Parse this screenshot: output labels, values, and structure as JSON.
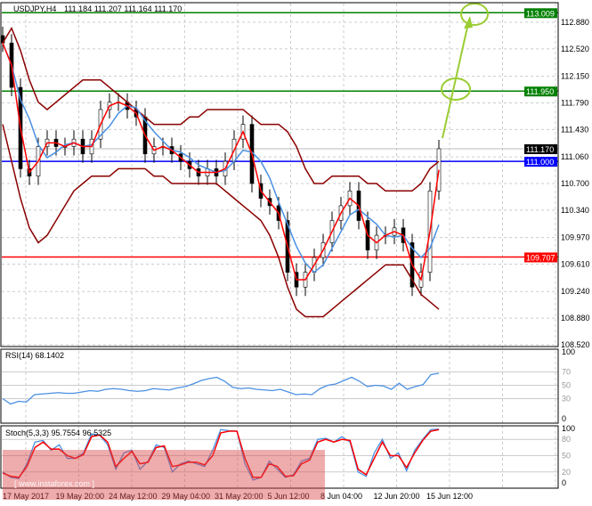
{
  "chart_data": [
    {
      "type": "candlestick",
      "title": "USDJPY,H4",
      "ohlc_header": "111.184 111.207 111.164 111.170",
      "ylim": [
        108.52,
        113.1
      ],
      "y_ticks": [
        "112.880",
        "112.520",
        "112.150",
        "111.790",
        "111.430",
        "111.060",
        "110.700",
        "110.340",
        "109.970",
        "109.610",
        "109.240",
        "108.880",
        "108.520"
      ],
      "x_ticks": [
        "17 May 2017",
        "19 May 20:00",
        "24 May 12:00",
        "29 May 04:00",
        "31 May 20:00",
        "5 Jun 12:00",
        "8 Jun 04:00",
        "12 Jun 20:00",
        "15 Jun 12:00"
      ],
      "closes": [
        112.6,
        112.0,
        110.9,
        110.8,
        111.2,
        111.3,
        111.2,
        111.2,
        111.3,
        111.1,
        111.3,
        111.7,
        111.8,
        111.8,
        111.7,
        111.6,
        111.1,
        111.2,
        111.2,
        111.1,
        111.0,
        110.9,
        110.8,
        110.9,
        110.8,
        111.0,
        111.3,
        111.5,
        110.7,
        110.5,
        110.4,
        110.2,
        109.5,
        109.3,
        109.5,
        109.7,
        109.9,
        110.2,
        110.4,
        110.6,
        110.2,
        109.8,
        110.0,
        110.0,
        110.1,
        109.9,
        109.3,
        109.5,
        110.6,
        111.17
      ],
      "upper_band": [
        112.6,
        112.8,
        112.5,
        112.1,
        111.8,
        111.7,
        111.8,
        111.9,
        112.0,
        112.1,
        112.1,
        112.1,
        112.0,
        111.9,
        111.8,
        111.7,
        111.6,
        111.5,
        111.5,
        111.5,
        111.5,
        111.6,
        111.6,
        111.7,
        111.7,
        111.7,
        111.7,
        111.7,
        111.6,
        111.5,
        111.5,
        111.5,
        111.4,
        111.2,
        110.9,
        110.7,
        110.7,
        110.8,
        110.8,
        110.8,
        110.8,
        110.7,
        110.7,
        110.6,
        110.6,
        110.6,
        110.6,
        110.7,
        110.9,
        111.0
      ],
      "lower_band": [
        111.5,
        111.0,
        110.5,
        110.1,
        109.9,
        110.0,
        110.2,
        110.4,
        110.6,
        110.7,
        110.8,
        110.8,
        110.8,
        110.9,
        110.9,
        110.9,
        110.9,
        110.8,
        110.8,
        110.7,
        110.7,
        110.7,
        110.7,
        110.7,
        110.7,
        110.6,
        110.5,
        110.4,
        110.3,
        110.2,
        110.0,
        109.7,
        109.3,
        109.0,
        108.9,
        108.9,
        108.9,
        109.0,
        109.1,
        109.2,
        109.3,
        109.4,
        109.5,
        109.6,
        109.6,
        109.6,
        109.4,
        109.2,
        109.1,
        109.0
      ],
      "horizontal_levels": [
        {
          "value": "113.009",
          "color": "#008000"
        },
        {
          "value": "111.950",
          "color": "#008000"
        },
        {
          "value": "111.170",
          "color": "#000000"
        },
        {
          "value": "111.000",
          "color": "#0000ff"
        },
        {
          "value": "109.707",
          "color": "#ff0000"
        }
      ],
      "colors": {
        "candle": "#008000",
        "upper_ma": "#ff0000",
        "mid_ma": "#4a90e2",
        "bands": "#8b0000",
        "arrow": "#9acd32"
      }
    },
    {
      "type": "line",
      "title": "RSI(14) 68.1402",
      "ylim": [
        0,
        100
      ],
      "y_ticks": [
        "100",
        "70",
        "50",
        "30",
        "0"
      ],
      "values": [
        30,
        22,
        26,
        25,
        36,
        37,
        38,
        39,
        38,
        38,
        40,
        42,
        41,
        44,
        45,
        44,
        42,
        41,
        42,
        45,
        44,
        43,
        46,
        48,
        52,
        57,
        60,
        62,
        56,
        47,
        45,
        46,
        44,
        43,
        42,
        44,
        40,
        36,
        37,
        36,
        45,
        50,
        52,
        57,
        62,
        56,
        48,
        50,
        49,
        44,
        53,
        44,
        48,
        51,
        66,
        68
      ]
    },
    {
      "type": "line",
      "title": "Stoch(5,3,3) 95.7554 96.5325",
      "ylim": [
        0,
        100
      ],
      "y_ticks": [
        "100",
        "80",
        "50",
        "20",
        "0"
      ],
      "series": [
        {
          "values": [
            20,
            10,
            8,
            35,
            75,
            78,
            60,
            70,
            45,
            45,
            55,
            90,
            88,
            70,
            25,
            55,
            60,
            25,
            40,
            70,
            65,
            20,
            35,
            40,
            35,
            30,
            60,
            98,
            96,
            95,
            35,
            5,
            10,
            40,
            25,
            10,
            15,
            40,
            45,
            80,
            82,
            75,
            85,
            75,
            20,
            12,
            55,
            80,
            45,
            55,
            22,
            60,
            80,
            98,
            99
          ]
        },
        {
          "values": [
            18,
            12,
            10,
            30,
            65,
            75,
            62,
            62,
            50,
            45,
            52,
            85,
            88,
            75,
            30,
            45,
            58,
            35,
            38,
            65,
            68,
            30,
            33,
            38,
            38,
            33,
            50,
            92,
            95,
            95,
            45,
            10,
            10,
            35,
            30,
            12,
            13,
            35,
            42,
            75,
            80,
            75,
            80,
            78,
            25,
            15,
            45,
            75,
            50,
            50,
            28,
            55,
            78,
            95,
            98
          ]
        }
      ]
    }
  ],
  "watermark": "[ www.instaforex.com ]"
}
